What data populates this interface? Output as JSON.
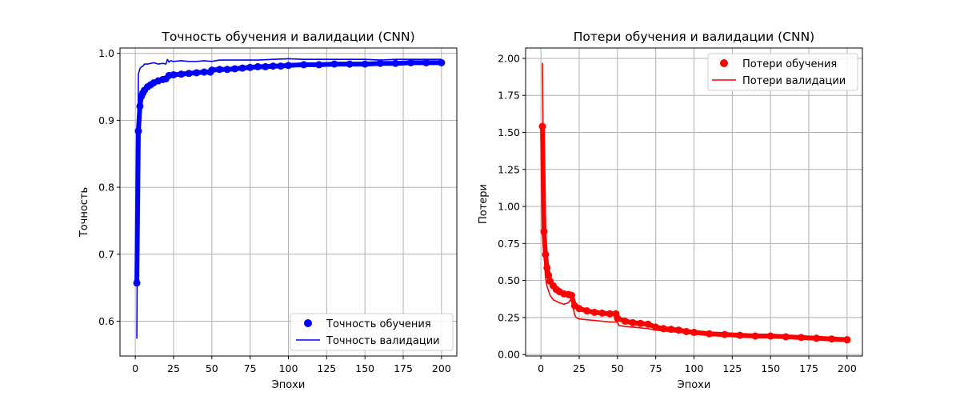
{
  "chart_data": [
    {
      "type": "line",
      "title": "Точность обучения и валидации (CNN)",
      "xlabel": "Эпохи",
      "ylabel": "Точность",
      "xlim": [
        -10,
        210
      ],
      "ylim": [
        0.548,
        1.008
      ],
      "xticks": [
        0,
        25,
        50,
        75,
        100,
        125,
        150,
        175,
        200
      ],
      "yticks": [
        0.6,
        0.7,
        0.8,
        0.9,
        1.0
      ],
      "ytick_labels": [
        "0.6",
        "0.7",
        "0.8",
        "0.9",
        "1.0"
      ],
      "grid": true,
      "legend": "lower-right",
      "series": [
        {
          "name": "Точность обучения",
          "style": "markers",
          "color": "#0000ff",
          "x": [
            1,
            2,
            3,
            4,
            5,
            6,
            8,
            10,
            12,
            15,
            18,
            20,
            22,
            25,
            30,
            35,
            40,
            45,
            49,
            50,
            55,
            60,
            65,
            70,
            75,
            80,
            85,
            90,
            95,
            100,
            110,
            120,
            130,
            140,
            150,
            160,
            170,
            180,
            190,
            200
          ],
          "y": [
            0.657,
            0.884,
            0.921,
            0.936,
            0.941,
            0.945,
            0.95,
            0.953,
            0.956,
            0.959,
            0.961,
            0.962,
            0.967,
            0.968,
            0.969,
            0.97,
            0.971,
            0.972,
            0.972,
            0.975,
            0.976,
            0.976,
            0.977,
            0.978,
            0.979,
            0.98,
            0.98,
            0.981,
            0.981,
            0.982,
            0.983,
            0.983,
            0.984,
            0.984,
            0.984,
            0.985,
            0.985,
            0.986,
            0.986,
            0.986
          ]
        },
        {
          "name": "Точность валидации",
          "style": "line",
          "color": "#0000ff",
          "x": [
            1,
            2,
            3,
            4,
            5,
            6,
            8,
            10,
            12,
            15,
            18,
            20,
            21,
            22,
            23,
            25,
            30,
            35,
            40,
            45,
            50,
            55,
            60,
            70,
            80,
            90,
            100,
            110,
            120,
            130,
            140,
            150,
            160,
            170,
            180,
            190,
            200
          ],
          "y": [
            0.574,
            0.969,
            0.977,
            0.98,
            0.981,
            0.984,
            0.984,
            0.985,
            0.986,
            0.984,
            0.985,
            0.984,
            0.991,
            0.987,
            0.989,
            0.988,
            0.989,
            0.988,
            0.988,
            0.989,
            0.988,
            0.99,
            0.99,
            0.99,
            0.99,
            0.991,
            0.992,
            0.991,
            0.991,
            0.991,
            0.991,
            0.991,
            0.99,
            0.991,
            0.991,
            0.991,
            0.991
          ]
        }
      ]
    },
    {
      "type": "line",
      "title": "Потери обучения и валидации (CNN)",
      "xlabel": "Эпохи",
      "ylabel": "Потери",
      "xlim": [
        -10,
        210
      ],
      "ylim": [
        -0.01,
        2.07
      ],
      "xticks": [
        0,
        25,
        50,
        75,
        100,
        125,
        150,
        175,
        200
      ],
      "yticks": [
        0.0,
        0.25,
        0.5,
        0.75,
        1.0,
        1.25,
        1.5,
        1.75,
        2.0
      ],
      "ytick_labels": [
        "0.00",
        "0.25",
        "0.50",
        "0.75",
        "1.00",
        "1.25",
        "1.50",
        "1.75",
        "2.00"
      ],
      "grid": true,
      "legend": "upper-right",
      "series": [
        {
          "name": "Потери обучения",
          "style": "markers",
          "color": "#ff0000",
          "x": [
            1,
            2,
            3,
            4,
            5,
            6,
            8,
            10,
            12,
            15,
            18,
            20,
            22,
            25,
            30,
            35,
            40,
            45,
            49,
            50,
            55,
            60,
            65,
            70,
            75,
            80,
            85,
            90,
            95,
            100,
            110,
            120,
            130,
            140,
            150,
            160,
            170,
            180,
            190,
            200
          ],
          "y": [
            1.54,
            0.83,
            0.675,
            0.585,
            0.535,
            0.495,
            0.465,
            0.44,
            0.425,
            0.41,
            0.405,
            0.4,
            0.33,
            0.31,
            0.295,
            0.285,
            0.28,
            0.275,
            0.275,
            0.245,
            0.225,
            0.215,
            0.21,
            0.205,
            0.185,
            0.175,
            0.17,
            0.165,
            0.155,
            0.15,
            0.14,
            0.135,
            0.13,
            0.125,
            0.125,
            0.12,
            0.115,
            0.11,
            0.105,
            0.1
          ]
        },
        {
          "name": "Потери валидации",
          "style": "line",
          "color": "#ff0000",
          "x": [
            1,
            2,
            3,
            4,
            5,
            6,
            8,
            10,
            12,
            15,
            18,
            20,
            21,
            22,
            23,
            25,
            30,
            35,
            40,
            45,
            50,
            51,
            55,
            60,
            70,
            75,
            80,
            90,
            100,
            110,
            120,
            130,
            140,
            150,
            160,
            170,
            180,
            190,
            200
          ],
          "y": [
            1.97,
            0.7,
            0.52,
            0.46,
            0.43,
            0.4,
            0.37,
            0.36,
            0.35,
            0.34,
            0.35,
            0.38,
            0.32,
            0.27,
            0.25,
            0.24,
            0.235,
            0.23,
            0.225,
            0.22,
            0.22,
            0.195,
            0.19,
            0.185,
            0.175,
            0.165,
            0.16,
            0.15,
            0.14,
            0.13,
            0.125,
            0.12,
            0.115,
            0.113,
            0.11,
            0.105,
            0.1,
            0.1,
            0.1
          ]
        }
      ]
    }
  ]
}
